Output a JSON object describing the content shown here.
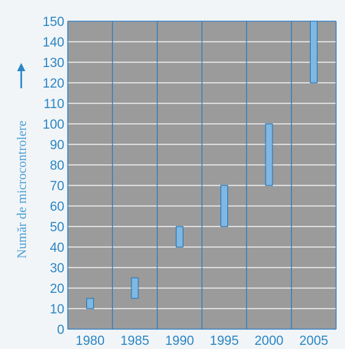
{
  "chart_data": {
    "type": "bar",
    "subtype": "floating-range",
    "categories": [
      "1980",
      "1985",
      "1990",
      "1995",
      "2000",
      "2005"
    ],
    "series": [
      {
        "ranges": [
          [
            10,
            15
          ],
          [
            15,
            25
          ],
          [
            40,
            50
          ],
          [
            50,
            70
          ],
          [
            70,
            100
          ],
          [
            120,
            150
          ]
        ]
      }
    ],
    "ylabel": "Număr de microcontrolere",
    "ylim": [
      0,
      150
    ],
    "yticks": [
      0,
      10,
      20,
      30,
      40,
      50,
      60,
      70,
      80,
      90,
      100,
      110,
      120,
      130,
      140,
      150
    ],
    "grid": true,
    "legend": "none",
    "colors": {
      "plot_background": "#9b9b9b",
      "gridline": "#ffffff",
      "category_divider": "#2a7ec4",
      "bar_fill": "#7fb8e3",
      "bar_stroke": "#1c6fb5",
      "tick_text": "#2a86c6",
      "axis_label": "#4a9ed6",
      "arrow": "#2a86c6"
    },
    "icons": {
      "axis_arrow": "arrow-up-icon"
    }
  }
}
